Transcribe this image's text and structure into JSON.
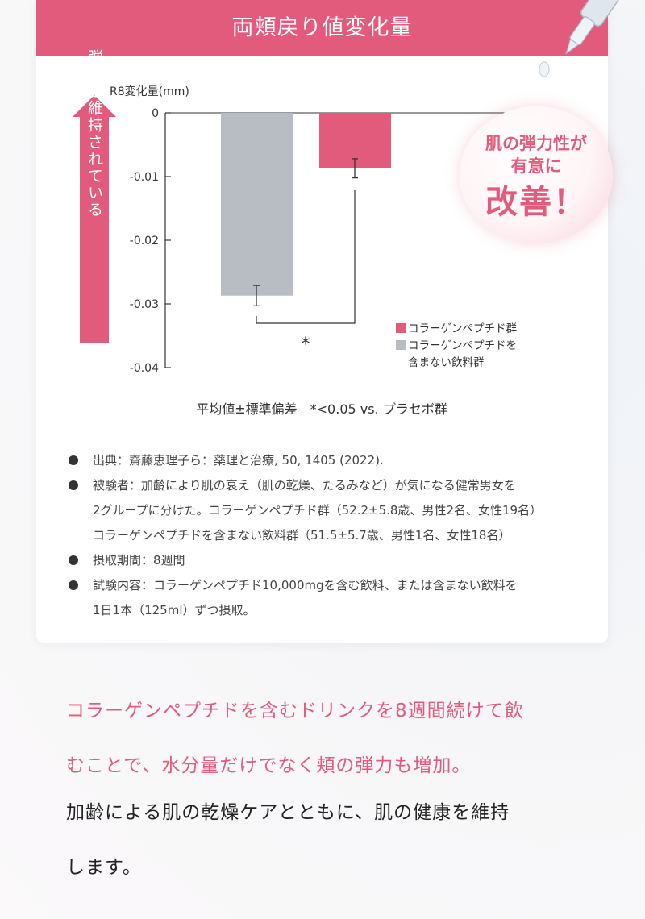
{
  "header": {
    "title": "両頬戻り値変化量"
  },
  "badge": {
    "line1": "肌の弾力性が",
    "line2": "有意に",
    "line3": "改善！"
  },
  "side_label": "弾力が維持されている",
  "chart_data": {
    "type": "bar",
    "ylabel": "R8変化量(mm)",
    "ylim": [
      -0.04,
      0
    ],
    "yticks": [
      "0",
      "-0.01",
      "-0.02",
      "-0.03",
      "-0.04"
    ],
    "series": [
      {
        "name": "コラーゲンペプチドを含まない飲料群",
        "value": -0.0287,
        "error": 0.0016,
        "color": "#b8bcc3"
      },
      {
        "name": "コラーゲンペプチド群",
        "value": -0.0087,
        "error": 0.0015,
        "color": "#e35b7c"
      }
    ],
    "legend": [
      {
        "lines": [
          "コラーゲンペプチド群"
        ],
        "color": "#e35b7c"
      },
      {
        "lines": [
          "コラーゲンペプチドを",
          "含まない飲料群"
        ],
        "color": "#b8bcc3"
      }
    ],
    "significance_mark": "*",
    "footnote": "平均値±標準偏差　*<0.05 vs. プラセボ群"
  },
  "notes": [
    {
      "lines": [
        "出典：齋藤恵理子ら：薬理と治療, 50, 1405 (2022)."
      ]
    },
    {
      "lines": [
        "被験者：加齢により肌の衰え（肌の乾燥、たるみなど）が気になる健常男女を",
        "2グループに分けた。コラーゲンペプチド群（52.2±5.8歳、男性2名、女性19名）",
        "コラーゲンペプチドを含まない飲料群（51.5±5.7歳、男性1名、女性18名）"
      ]
    },
    {
      "lines": [
        "摂取期間：8週間"
      ]
    },
    {
      "lines": [
        "試験内容：コラーゲンペプチド10,000mgを含む飲料、または含まない飲料を",
        "1日1本（125ml）ずつ摂取。"
      ]
    }
  ],
  "footer": {
    "pink_lines": [
      "コラーゲンペプチドを含むドリンクを8週間続けて飲",
      "むことで、水分量だけでなく頬の弾力も増加。"
    ],
    "dark_lines": [
      "加齢による肌の乾燥ケアとともに、肌の健康を維持",
      "します。"
    ]
  }
}
